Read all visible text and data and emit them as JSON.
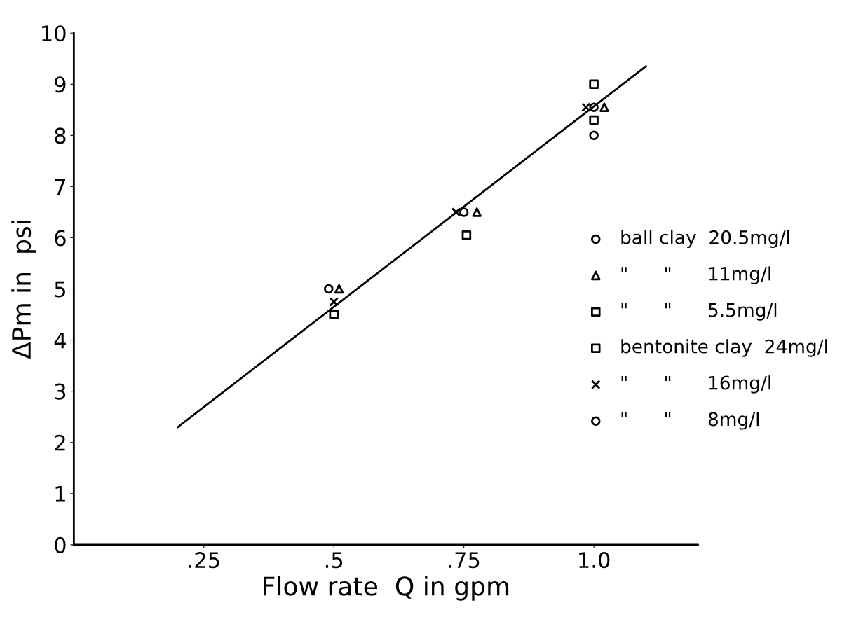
{
  "chart_data": {
    "type": "scatter",
    "xlabel": "Flow rate  Q in gpm",
    "ylabel": "ΔPm in  psi",
    "xlim": [
      0,
      1.2
    ],
    "ylim": [
      0,
      10
    ],
    "xticks": [
      {
        "value": 0.25,
        "label": ".25"
      },
      {
        "value": 0.5,
        "label": ".5"
      },
      {
        "value": 0.75,
        "label": ".75"
      },
      {
        "value": 1.0,
        "label": "1.0"
      }
    ],
    "yticks": [
      0,
      1,
      2,
      3,
      4,
      5,
      6,
      7,
      8,
      9,
      10
    ],
    "grid": false,
    "legend": "right",
    "color": "#000000",
    "series": [
      {
        "name": "ball clay  20.5mg/l",
        "marker": "circle",
        "x": [
          0.49,
          0.75,
          1.0
        ],
        "values": [
          5.0,
          6.5,
          8.55
        ]
      },
      {
        "name": "\"      \"      11mg/l",
        "marker": "triangle",
        "x": [
          0.51,
          0.775,
          1.02
        ],
        "values": [
          5.0,
          6.5,
          8.55
        ]
      },
      {
        "name": "\"      \"      5.5mg/l",
        "marker": "square",
        "x": [
          0.5,
          0.755,
          1.0
        ],
        "values": [
          4.5,
          6.05,
          8.3
        ]
      },
      {
        "name": "bentonite clay  24mg/l",
        "marker": "square",
        "x": [
          1.0
        ],
        "values": [
          9.0
        ]
      },
      {
        "name": "\"      \"      16mg/l",
        "marker": "cross",
        "x": [
          0.5,
          0.735,
          0.985
        ],
        "values": [
          4.75,
          6.5,
          8.55
        ]
      },
      {
        "name": "\"      \"      8mg/l",
        "marker": "circle",
        "x": [
          1.0
        ],
        "values": [
          8.0
        ]
      },
      {
        "type": "line",
        "marker": "none",
        "x": [
          0.2,
          1.1
        ],
        "values": [
          2.3,
          9.35
        ]
      }
    ]
  }
}
